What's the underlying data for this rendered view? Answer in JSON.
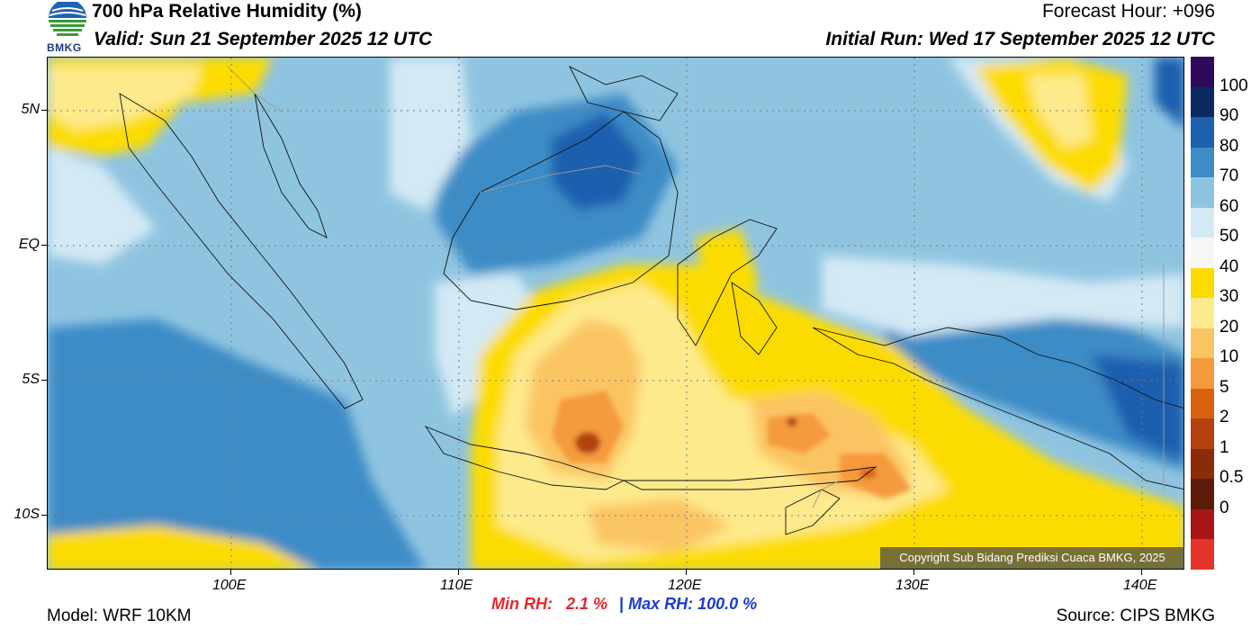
{
  "header": {
    "title": "700 hPa Relative Humidity (%)",
    "valid": "Valid: Sun 21 September 2025 12 UTC",
    "forecast_hour": "Forecast Hour: +096",
    "initial_run": "Initial Run: Wed 17 September 2025 12 UTC",
    "logo_text": "BMKG"
  },
  "axes": {
    "lat_labels": [
      "5N",
      "EQ",
      "5S",
      "10S"
    ],
    "lon_labels": [
      "100E",
      "110E",
      "120E",
      "130E",
      "140E"
    ]
  },
  "colorbar": {
    "labels": [
      "100",
      "90",
      "80",
      "70",
      "60",
      "50",
      "40",
      "30",
      "20",
      "10",
      "5",
      "2",
      "1",
      "0.5",
      "0"
    ],
    "colors": [
      "#2e0a5b",
      "#0b2a62",
      "#1e5fae",
      "#3d8cc6",
      "#8fc4e0",
      "#d3e9f4",
      "#f6f6f6",
      "#fcdc00",
      "#fdea8d",
      "#fbc463",
      "#f59a3c",
      "#d9620f",
      "#b3420c",
      "#8a2c08",
      "#5c1a08",
      "#a71515",
      "#e3352b"
    ]
  },
  "stats": {
    "min_label": "Min RH:",
    "min_value": "2.1 %",
    "separator": "|",
    "max_label": "Max RH:",
    "max_value": "100.0 %"
  },
  "footer": {
    "model": "Model: WRF 10KM",
    "source": "Source: CIPS BMKG",
    "copyright": "Copyright Sub Bidang Prediksi Cuaca BMKG, 2025"
  }
}
